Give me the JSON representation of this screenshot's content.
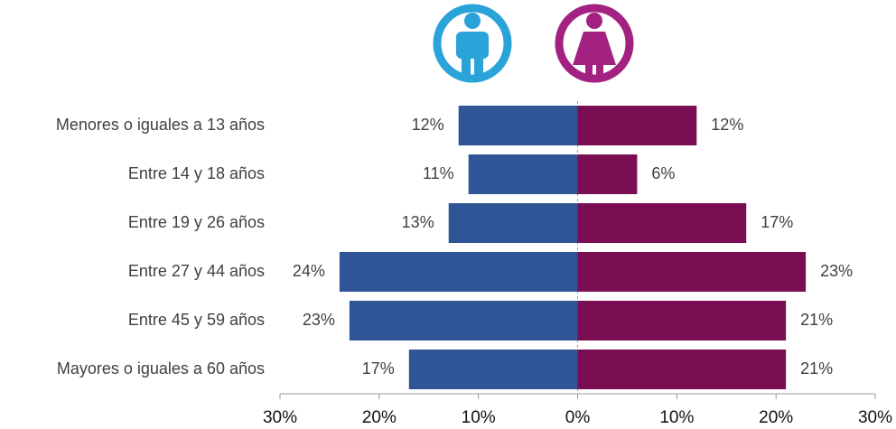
{
  "chart_data": {
    "type": "pyramid",
    "categories": [
      "Menores o iguales a 13 años",
      "Entre 14 y 18 años",
      "Entre 19 y 26 años",
      "Entre 27 y 44 años",
      "Entre 45 y 59 años",
      "Mayores o iguales a 60 años"
    ],
    "series": [
      {
        "color": "#2f5597",
        "values": [
          12,
          11,
          13,
          24,
          23,
          17
        ],
        "value_labels": [
          "12%",
          "11%",
          "13%",
          "24%",
          "23%",
          "17%"
        ]
      },
      {
        "color": "#7a0e52",
        "values": [
          12,
          6,
          17,
          23,
          21,
          21
        ],
        "value_labels": [
          "12%",
          "6%",
          "17%",
          "23%",
          "21%",
          "21%"
        ]
      }
    ],
    "xlim": [
      -30,
      30
    ],
    "xticks": [
      {
        "value": -30,
        "label": "30%"
      },
      {
        "value": -20,
        "label": "20%"
      },
      {
        "value": -10,
        "label": "10%"
      },
      {
        "value": 0,
        "label": "0%"
      },
      {
        "value": 10,
        "label": "10%"
      },
      {
        "value": 20,
        "label": "20%"
      },
      {
        "value": 30,
        "label": "30%"
      }
    ]
  }
}
